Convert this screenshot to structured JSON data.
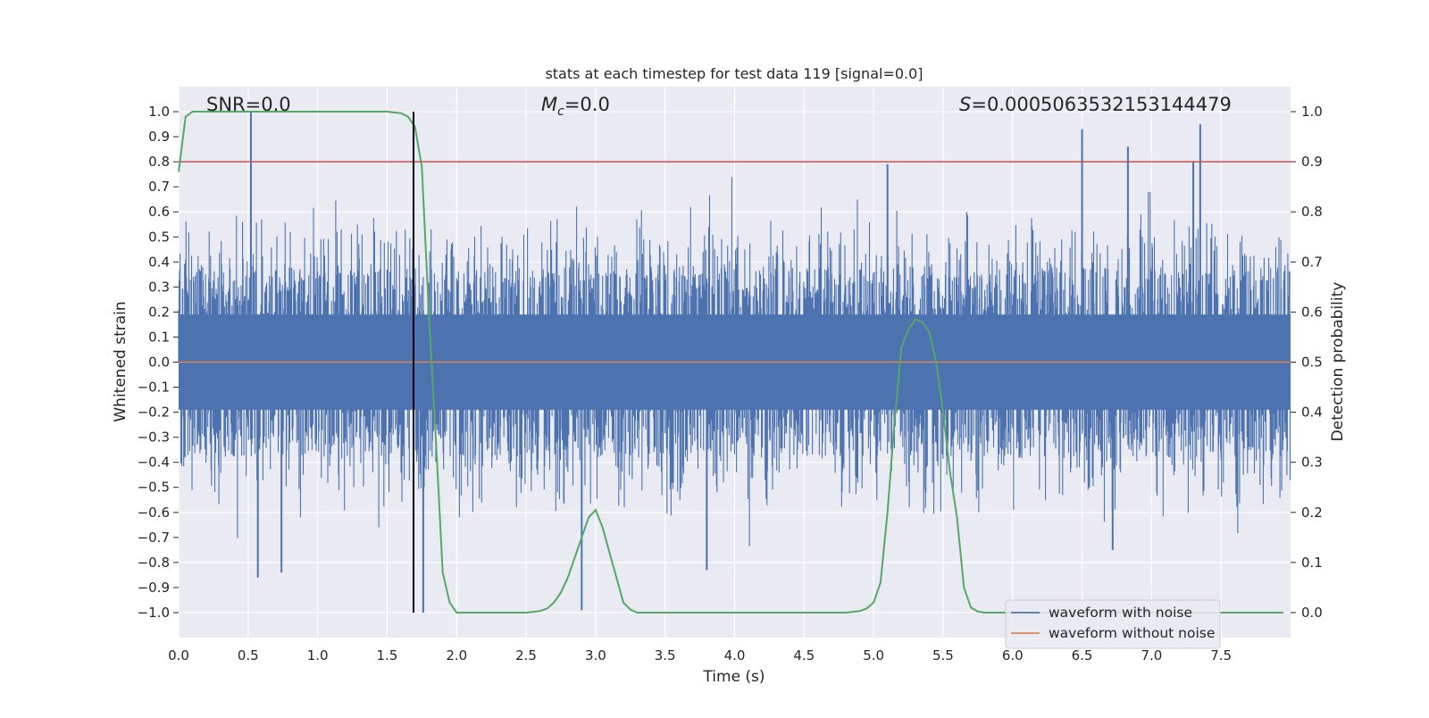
{
  "chart_data": {
    "type": "line",
    "title": "stats at each timestep for test data 119 [signal=0.0]",
    "xlabel": "Time (s)",
    "ylabel_left": "Whitened strain",
    "ylabel_right": "Detection probability",
    "xlim": [
      0.0,
      8.0
    ],
    "ylim_left": [
      -1.1,
      1.1
    ],
    "ylim_right": [
      -0.05,
      1.05
    ],
    "x_ticks": [
      "0.0",
      "0.5",
      "1.0",
      "1.5",
      "2.0",
      "2.5",
      "3.0",
      "3.5",
      "4.0",
      "4.5",
      "5.0",
      "5.5",
      "6.0",
      "6.5",
      "7.0",
      "7.5"
    ],
    "y_ticks_left": [
      "1.0",
      "0.9",
      "0.8",
      "0.7",
      "0.6",
      "0.5",
      "0.4",
      "0.3",
      "0.2",
      "0.1",
      "0.0",
      "−0.1",
      "−0.2",
      "−0.3",
      "−0.4",
      "−0.5",
      "−0.6",
      "−0.7",
      "−0.8",
      "−0.9",
      "−1.0"
    ],
    "y_ticks_right": [
      "1.0",
      "0.9",
      "0.8",
      "0.7",
      "0.6",
      "0.5",
      "0.4",
      "0.3",
      "0.2",
      "0.1",
      "0.0"
    ],
    "grid": true,
    "annotations": {
      "snr": "SNR=0.0",
      "mc_symbol": "M",
      "mc_sub": "c",
      "mc_value": "=0.0",
      "s_symbol": "S",
      "s_value": "=0.0005063532153144479"
    },
    "threshold_line": {
      "axis": "right",
      "y": 0.9,
      "color": "#c44e52"
    },
    "vertical_marker": {
      "x": 1.69,
      "y_from": -1.0,
      "y_to": 1.0,
      "color": "#000000"
    },
    "series": [
      {
        "name": "waveform with noise",
        "axis": "left",
        "color": "#4c72b0",
        "description": "whitened noisy strain, values mostly between -0.4 and 0.4 with spikes to about ±1.0",
        "spikes": [
          {
            "x": 0.52,
            "y": 1.0
          },
          {
            "x": 0.57,
            "y": -0.86
          },
          {
            "x": 0.74,
            "y": -0.84
          },
          {
            "x": 1.76,
            "y": -1.0
          },
          {
            "x": 2.9,
            "y": -0.99
          },
          {
            "x": 3.8,
            "y": -0.83
          },
          {
            "x": 5.1,
            "y": 0.79
          },
          {
            "x": 6.5,
            "y": 0.93
          },
          {
            "x": 6.83,
            "y": 0.86
          },
          {
            "x": 7.35,
            "y": 0.95
          },
          {
            "x": 7.3,
            "y": 0.8
          },
          {
            "x": 6.72,
            "y": -0.75
          }
        ]
      },
      {
        "name": "waveform without noise",
        "axis": "left",
        "color": "#dd8452",
        "x": [
          0.0,
          8.0
        ],
        "y": [
          0.0,
          0.0
        ]
      },
      {
        "name": "detection probability",
        "axis": "right",
        "color": "#55a868",
        "x": [
          0.0,
          0.05,
          0.1,
          0.2,
          0.5,
          1.0,
          1.5,
          1.6,
          1.65,
          1.7,
          1.75,
          1.8,
          1.85,
          1.9,
          1.95,
          2.0,
          2.5,
          2.6,
          2.65,
          2.7,
          2.75,
          2.8,
          2.85,
          2.9,
          2.95,
          3.0,
          3.05,
          3.1,
          3.15,
          3.2,
          3.25,
          3.3,
          4.8,
          4.9,
          4.95,
          5.0,
          5.05,
          5.1,
          5.15,
          5.2,
          5.25,
          5.3,
          5.35,
          5.4,
          5.45,
          5.5,
          5.55,
          5.6,
          5.65,
          5.7,
          5.75,
          5.8,
          7.95
        ],
        "y": [
          0.88,
          0.99,
          1.0,
          1.0,
          1.0,
          1.0,
          1.0,
          0.997,
          0.99,
          0.97,
          0.89,
          0.6,
          0.35,
          0.08,
          0.02,
          0.0,
          0.0,
          0.003,
          0.008,
          0.02,
          0.04,
          0.07,
          0.11,
          0.15,
          0.19,
          0.205,
          0.17,
          0.12,
          0.07,
          0.02,
          0.006,
          0.0,
          0.0,
          0.003,
          0.008,
          0.02,
          0.06,
          0.2,
          0.38,
          0.53,
          0.565,
          0.585,
          0.58,
          0.56,
          0.5,
          0.4,
          0.28,
          0.19,
          0.05,
          0.01,
          0.002,
          0.0,
          0.0
        ]
      }
    ],
    "legend": {
      "position": "lower-right",
      "entries": [
        {
          "label": "waveform with noise",
          "color": "#4c72b0"
        },
        {
          "label": "waveform without noise",
          "color": "#dd8452"
        }
      ]
    },
    "colors": {
      "plot_background": "#eaeaf2",
      "grid": "#ffffff"
    }
  }
}
